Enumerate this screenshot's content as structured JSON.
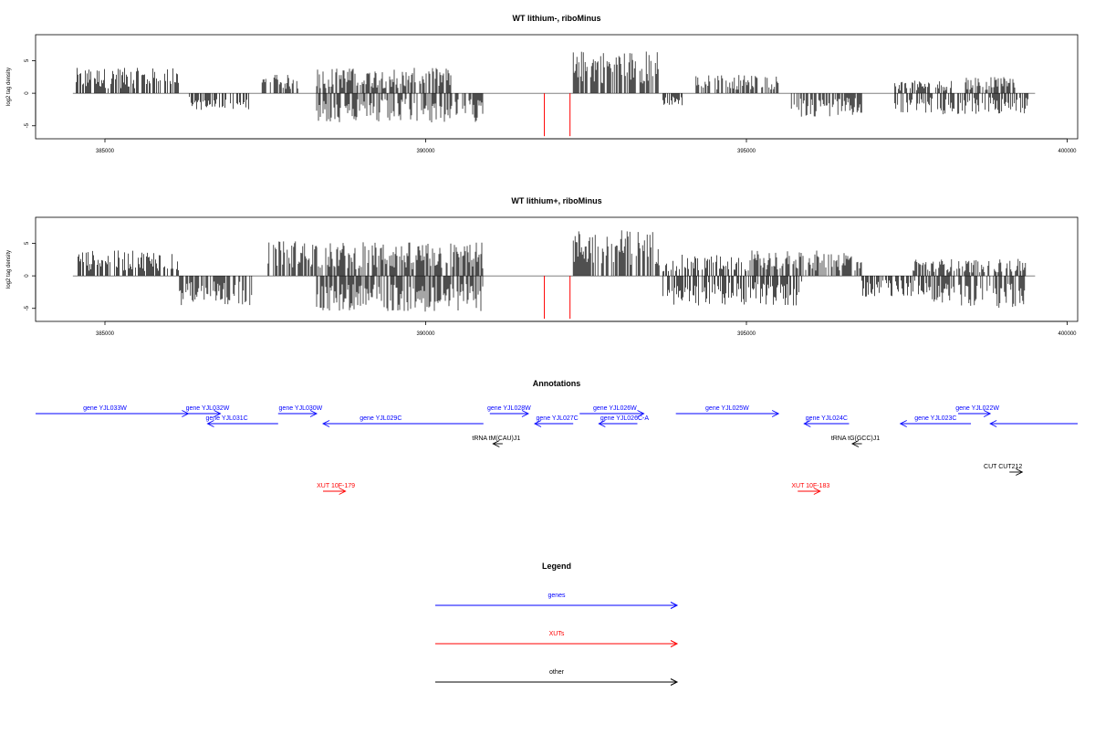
{
  "chart_data": [
    {
      "type": "bar",
      "title": "WT lithium-, riboMinus",
      "ylabel": "log2 tag density",
      "xlim": [
        384500,
        399500
      ],
      "ylim": [
        -7,
        9
      ],
      "xticks": [
        385000,
        390000,
        395000,
        400000
      ],
      "yticks": [
        5,
        0,
        -5
      ],
      "colors": {
        "bars": "#000000",
        "markers": "#ff0000"
      },
      "markers": [
        391850,
        392250
      ],
      "segments": [
        {
          "start": 384550,
          "end": 386150,
          "level": 3.0,
          "sign": 1
        },
        {
          "start": 386300,
          "end": 387250,
          "level": 2.0,
          "sign": -1
        },
        {
          "start": 387450,
          "end": 388100,
          "level": 2.2,
          "sign": 1
        },
        {
          "start": 388300,
          "end": 390400,
          "level": 3.0,
          "sign": 1
        },
        {
          "start": 388300,
          "end": 390900,
          "level": 3.5,
          "sign": -1
        },
        {
          "start": 392300,
          "end": 393650,
          "level": 6.0,
          "sign": 1
        },
        {
          "start": 393700,
          "end": 394000,
          "level": 1.5,
          "sign": -1
        },
        {
          "start": 394200,
          "end": 395500,
          "level": 2.2,
          "sign": 1
        },
        {
          "start": 395700,
          "end": 396800,
          "level": 2.8,
          "sign": -1
        },
        {
          "start": 397300,
          "end": 398200,
          "level": 1.5,
          "sign": 1
        },
        {
          "start": 397300,
          "end": 399400,
          "level": 2.5,
          "sign": -1
        },
        {
          "start": 398400,
          "end": 399200,
          "level": 2.0,
          "sign": 1
        }
      ]
    },
    {
      "type": "bar",
      "title": "WT lithium+, riboMinus",
      "ylabel": "log2 tag density",
      "xlim": [
        384500,
        399500
      ],
      "ylim": [
        -7,
        9
      ],
      "xticks": [
        385000,
        390000,
        395000,
        400000
      ],
      "yticks": [
        5,
        0,
        -5
      ],
      "colors": {
        "bars": "#000000",
        "markers": "#ff0000"
      },
      "markers": [
        391850,
        392250
      ],
      "segments": [
        {
          "start": 384550,
          "end": 386150,
          "level": 3.0,
          "sign": 1
        },
        {
          "start": 386150,
          "end": 387300,
          "level": 3.5,
          "sign": -1
        },
        {
          "start": 387500,
          "end": 388300,
          "level": 5.0,
          "sign": 1
        },
        {
          "start": 388300,
          "end": 390900,
          "level": 4.0,
          "sign": 1
        },
        {
          "start": 388300,
          "end": 390900,
          "level": 5.0,
          "sign": -1
        },
        {
          "start": 392300,
          "end": 393650,
          "level": 6.5,
          "sign": 1
        },
        {
          "start": 393700,
          "end": 395000,
          "level": 2.5,
          "sign": 1
        },
        {
          "start": 393700,
          "end": 395900,
          "level": 3.5,
          "sign": -1
        },
        {
          "start": 395000,
          "end": 396800,
          "level": 3.0,
          "sign": 1
        },
        {
          "start": 396800,
          "end": 397800,
          "level": 2.5,
          "sign": -1
        },
        {
          "start": 397800,
          "end": 399400,
          "level": 4.5,
          "sign": -1
        },
        {
          "start": 397600,
          "end": 399400,
          "level": 2.0,
          "sign": 1
        }
      ]
    },
    {
      "type": "annotation-track",
      "title": "Annotations",
      "colors": {
        "genes": "#0000ff",
        "XUTs": "#ff0000",
        "other": "#000000"
      },
      "features": [
        {
          "label": "gene YJL033W",
          "category": "genes",
          "row": 0,
          "strand": "+",
          "start": 383700,
          "end": 386300,
          "label_at": 385000
        },
        {
          "label": "gene YJL032W",
          "category": "genes",
          "row": 0,
          "strand": "+",
          "start": 386300,
          "end": 386800,
          "label_at": 386600
        },
        {
          "label": "gene YJL031C",
          "category": "genes",
          "row": 1,
          "strand": "-",
          "start": 386600,
          "end": 387700,
          "label_at": 386900
        },
        {
          "label": "gene YJL030W",
          "category": "genes",
          "row": 0,
          "strand": "+",
          "start": 387700,
          "end": 388300,
          "label_at": 388050
        },
        {
          "label": "gene YJL029C",
          "category": "genes",
          "row": 1,
          "strand": "-",
          "start": 388400,
          "end": 390900,
          "label_at": 389300
        },
        {
          "label": "gene YJL028W",
          "category": "genes",
          "row": 0,
          "strand": "+",
          "start": 391000,
          "end": 391600,
          "label_at": 391300
        },
        {
          "label": "gene YJL027C",
          "category": "genes",
          "row": 1,
          "strand": "-",
          "start": 391700,
          "end": 392300,
          "label_at": 392050
        },
        {
          "label": "gene YJL026W",
          "category": "genes",
          "row": 0,
          "strand": "+",
          "start": 392400,
          "end": 393400,
          "label_at": 392950
        },
        {
          "label": "gene YJL026C-A",
          "category": "genes",
          "row": 1,
          "strand": "-",
          "start": 392700,
          "end": 393300,
          "label_at": 393100
        },
        {
          "label": "gene YJL025W",
          "category": "genes",
          "row": 0,
          "strand": "+",
          "start": 393900,
          "end": 395500,
          "label_at": 394700
        },
        {
          "label": "gene YJL024C",
          "category": "genes",
          "row": 1,
          "strand": "-",
          "start": 395900,
          "end": 396600,
          "label_at": 396250
        },
        {
          "label": "gene YJL023C",
          "category": "genes",
          "row": 1,
          "strand": "-",
          "start": 397400,
          "end": 398500,
          "label_at": 397950
        },
        {
          "label": "gene YJL022W",
          "category": "genes",
          "row": 0,
          "strand": "+",
          "start": 398300,
          "end": 398800,
          "label_at": 398600
        },
        {
          "label": "",
          "category": "genes",
          "row": 1,
          "strand": "-",
          "start": 398800,
          "end": 400200,
          "label_at": 399500
        },
        {
          "label": "tRNA tM(CAU)J1",
          "category": "other",
          "row": 2,
          "strand": "-",
          "start": 391050,
          "end": 391200,
          "label_at": 391100
        },
        {
          "label": "tRNA tG(GCC)J1",
          "category": "other",
          "row": 2,
          "strand": "-",
          "start": 396650,
          "end": 396800,
          "label_at": 396700
        },
        {
          "label": "CUT CUT212",
          "category": "other",
          "row": 3,
          "strand": "+",
          "start": 399100,
          "end": 399300,
          "label_at": 399000
        },
        {
          "label": "XUT 10F-179",
          "category": "XUTs",
          "row": 4,
          "strand": "+",
          "start": 388400,
          "end": 388750,
          "label_at": 388600
        },
        {
          "label": "XUT 10F-183",
          "category": "XUTs",
          "row": 4,
          "strand": "+",
          "start": 395800,
          "end": 396150,
          "label_at": 396000
        }
      ]
    },
    {
      "type": "legend",
      "title": "Legend",
      "entries": [
        {
          "label": "genes",
          "color": "#0000ff"
        },
        {
          "label": "XUTs",
          "color": "#ff0000"
        },
        {
          "label": "other",
          "color": "#000000"
        }
      ]
    }
  ]
}
